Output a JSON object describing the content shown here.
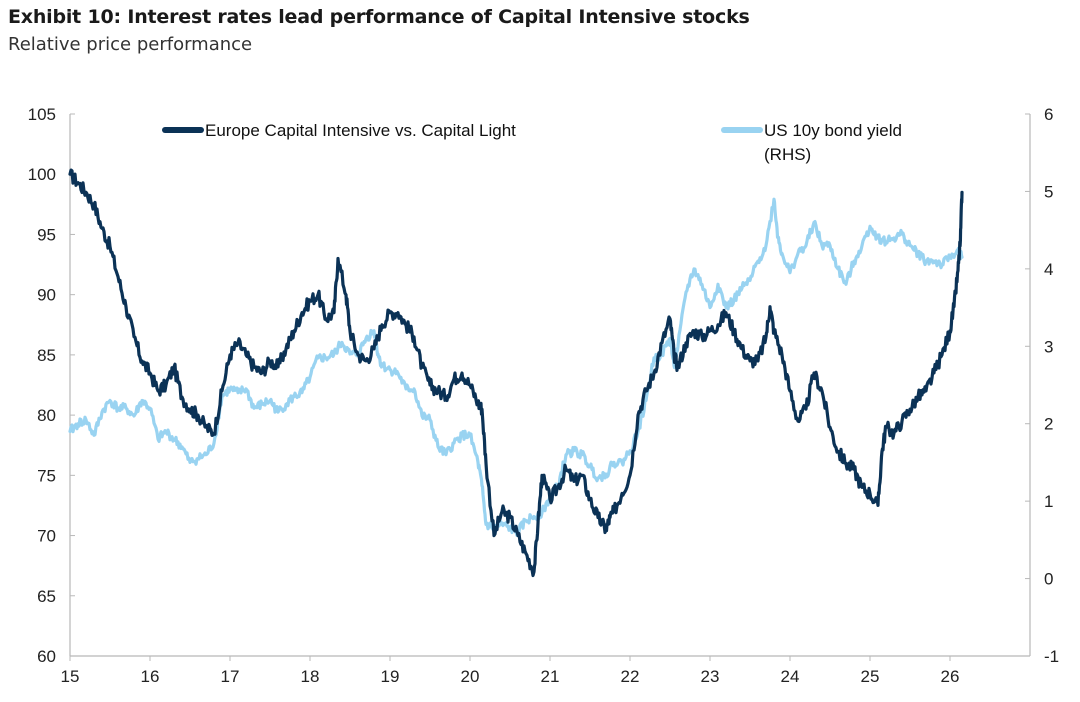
{
  "title": "Exhibit 10: Interest rates lead performance of Capital Intensive stocks",
  "subtitle": "Relative price performance",
  "chart_data": {
    "type": "line",
    "x_ticks": [
      "15",
      "16",
      "17",
      "18",
      "19",
      "20",
      "21",
      "22",
      "23",
      "24",
      "25",
      "26"
    ],
    "x_range": [
      2015,
      2027
    ],
    "left_axis": {
      "ticks": [
        60,
        65,
        70,
        75,
        80,
        85,
        90,
        95,
        100,
        105
      ],
      "range": [
        60,
        105
      ]
    },
    "right_axis": {
      "ticks": [
        -1,
        0,
        1,
        2,
        3,
        4,
        5,
        6
      ],
      "range": [
        -1,
        6
      ]
    },
    "legend_placement": "top",
    "series": [
      {
        "name": "Europe Capital Intensive vs. Capital Light",
        "axis": "left",
        "color": "#0b3256",
        "points": [
          [
            2015.0,
            100
          ],
          [
            2015.1,
            99.3
          ],
          [
            2015.2,
            98.5
          ],
          [
            2015.3,
            97.5
          ],
          [
            2015.4,
            95.5
          ],
          [
            2015.5,
            94
          ],
          [
            2015.6,
            91.5
          ],
          [
            2015.7,
            89
          ],
          [
            2015.8,
            86.5
          ],
          [
            2015.9,
            84.5
          ],
          [
            2016.0,
            83.5
          ],
          [
            2016.1,
            82
          ],
          [
            2016.2,
            82.5
          ],
          [
            2016.3,
            84
          ],
          [
            2016.4,
            81.5
          ],
          [
            2016.5,
            80.5
          ],
          [
            2016.6,
            80
          ],
          [
            2016.7,
            79
          ],
          [
            2016.8,
            78.5
          ],
          [
            2016.9,
            82
          ],
          [
            2017.0,
            85
          ],
          [
            2017.1,
            86
          ],
          [
            2017.2,
            85
          ],
          [
            2017.3,
            84
          ],
          [
            2017.4,
            83.5
          ],
          [
            2017.5,
            84.5
          ],
          [
            2017.6,
            84
          ],
          [
            2017.7,
            85.5
          ],
          [
            2017.8,
            87
          ],
          [
            2017.9,
            88.5
          ],
          [
            2018.0,
            89.5
          ],
          [
            2018.1,
            90
          ],
          [
            2018.2,
            88
          ],
          [
            2018.3,
            88.5
          ],
          [
            2018.35,
            93
          ],
          [
            2018.45,
            90
          ],
          [
            2018.5,
            87
          ],
          [
            2018.6,
            85
          ],
          [
            2018.7,
            84.5
          ],
          [
            2018.8,
            85.5
          ],
          [
            2018.9,
            87.5
          ],
          [
            2019.0,
            88.5
          ],
          [
            2019.1,
            88.5
          ],
          [
            2019.2,
            87.5
          ],
          [
            2019.3,
            86.5
          ],
          [
            2019.4,
            84
          ],
          [
            2019.5,
            82.5
          ],
          [
            2019.6,
            82
          ],
          [
            2019.7,
            81.5
          ],
          [
            2019.8,
            83
          ],
          [
            2019.9,
            83.5
          ],
          [
            2020.0,
            82.5
          ],
          [
            2020.1,
            81
          ],
          [
            2020.15,
            80.5
          ],
          [
            2020.2,
            76
          ],
          [
            2020.3,
            70
          ],
          [
            2020.4,
            72
          ],
          [
            2020.5,
            71.5
          ],
          [
            2020.6,
            70
          ],
          [
            2020.7,
            68.5
          ],
          [
            2020.8,
            67
          ],
          [
            2020.85,
            71
          ],
          [
            2020.9,
            75
          ],
          [
            2021.0,
            73
          ],
          [
            2021.1,
            74
          ],
          [
            2021.2,
            75.5
          ],
          [
            2021.3,
            74.5
          ],
          [
            2021.4,
            75
          ],
          [
            2021.5,
            73
          ],
          [
            2021.6,
            71.5
          ],
          [
            2021.7,
            70.5
          ],
          [
            2021.75,
            71.5
          ],
          [
            2021.8,
            72
          ],
          [
            2021.9,
            73.5
          ],
          [
            2022.0,
            75
          ],
          [
            2022.1,
            80
          ],
          [
            2022.2,
            82
          ],
          [
            2022.3,
            83.5
          ],
          [
            2022.4,
            86
          ],
          [
            2022.5,
            88
          ],
          [
            2022.55,
            85
          ],
          [
            2022.6,
            84
          ],
          [
            2022.7,
            86
          ],
          [
            2022.8,
            87
          ],
          [
            2022.9,
            86.5
          ],
          [
            2023.0,
            87
          ],
          [
            2023.1,
            87.5
          ],
          [
            2023.2,
            88.5
          ],
          [
            2023.3,
            87
          ],
          [
            2023.4,
            85.5
          ],
          [
            2023.5,
            84.5
          ],
          [
            2023.6,
            84.5
          ],
          [
            2023.7,
            86.5
          ],
          [
            2023.75,
            89
          ],
          [
            2023.8,
            87
          ],
          [
            2023.9,
            85
          ],
          [
            2024.0,
            82
          ],
          [
            2024.1,
            79.5
          ],
          [
            2024.2,
            80.5
          ],
          [
            2024.3,
            83.5
          ],
          [
            2024.4,
            82
          ],
          [
            2024.5,
            79
          ],
          [
            2024.6,
            77
          ],
          [
            2024.7,
            76
          ],
          [
            2024.8,
            75.5
          ],
          [
            2024.9,
            74
          ],
          [
            2025.0,
            73.5
          ],
          [
            2025.1,
            72.5
          ],
          [
            2025.15,
            77
          ],
          [
            2025.2,
            79
          ],
          [
            2025.3,
            78.5
          ],
          [
            2025.4,
            79.5
          ],
          [
            2025.5,
            80.5
          ],
          [
            2025.6,
            81.5
          ],
          [
            2025.7,
            82
          ],
          [
            2025.8,
            83.5
          ],
          [
            2025.9,
            85
          ],
          [
            2026.0,
            87
          ],
          [
            2026.05,
            89
          ],
          [
            2026.1,
            92
          ],
          [
            2026.13,
            94.5
          ],
          [
            2026.15,
            98.5
          ]
        ]
      },
      {
        "name": "US 10y bond yield (RHS)",
        "axis": "right",
        "color": "#99d3f1",
        "points": [
          [
            2015.0,
            1.9
          ],
          [
            2015.1,
            2.0
          ],
          [
            2015.2,
            2.05
          ],
          [
            2015.3,
            1.85
          ],
          [
            2015.4,
            2.15
          ],
          [
            2015.5,
            2.3
          ],
          [
            2015.6,
            2.2
          ],
          [
            2015.7,
            2.2
          ],
          [
            2015.8,
            2.1
          ],
          [
            2015.9,
            2.3
          ],
          [
            2016.0,
            2.2
          ],
          [
            2016.1,
            1.8
          ],
          [
            2016.2,
            1.9
          ],
          [
            2016.3,
            1.8
          ],
          [
            2016.4,
            1.7
          ],
          [
            2016.5,
            1.5
          ],
          [
            2016.6,
            1.55
          ],
          [
            2016.7,
            1.6
          ],
          [
            2016.8,
            1.75
          ],
          [
            2016.9,
            2.35
          ],
          [
            2017.0,
            2.45
          ],
          [
            2017.1,
            2.4
          ],
          [
            2017.2,
            2.45
          ],
          [
            2017.3,
            2.2
          ],
          [
            2017.4,
            2.25
          ],
          [
            2017.5,
            2.3
          ],
          [
            2017.6,
            2.15
          ],
          [
            2017.7,
            2.25
          ],
          [
            2017.8,
            2.35
          ],
          [
            2017.9,
            2.4
          ],
          [
            2018.0,
            2.6
          ],
          [
            2018.1,
            2.85
          ],
          [
            2018.2,
            2.85
          ],
          [
            2018.3,
            2.9
          ],
          [
            2018.4,
            3.05
          ],
          [
            2018.5,
            2.9
          ],
          [
            2018.6,
            2.9
          ],
          [
            2018.7,
            3.1
          ],
          [
            2018.8,
            3.2
          ],
          [
            2018.85,
            2.9
          ],
          [
            2018.9,
            2.75
          ],
          [
            2019.0,
            2.7
          ],
          [
            2019.1,
            2.65
          ],
          [
            2019.2,
            2.45
          ],
          [
            2019.3,
            2.45
          ],
          [
            2019.4,
            2.1
          ],
          [
            2019.5,
            2.05
          ],
          [
            2019.6,
            1.7
          ],
          [
            2019.7,
            1.6
          ],
          [
            2019.8,
            1.75
          ],
          [
            2019.9,
            1.85
          ],
          [
            2020.0,
            1.85
          ],
          [
            2020.1,
            1.5
          ],
          [
            2020.15,
            1.2
          ],
          [
            2020.2,
            0.7
          ],
          [
            2020.3,
            0.65
          ],
          [
            2020.4,
            0.7
          ],
          [
            2020.5,
            0.65
          ],
          [
            2020.6,
            0.6
          ],
          [
            2020.7,
            0.75
          ],
          [
            2020.8,
            0.8
          ],
          [
            2020.9,
            0.85
          ],
          [
            2021.0,
            1.05
          ],
          [
            2021.1,
            1.2
          ],
          [
            2021.2,
            1.6
          ],
          [
            2021.3,
            1.65
          ],
          [
            2021.4,
            1.6
          ],
          [
            2021.5,
            1.45
          ],
          [
            2021.6,
            1.3
          ],
          [
            2021.7,
            1.35
          ],
          [
            2021.8,
            1.5
          ],
          [
            2021.9,
            1.5
          ],
          [
            2022.0,
            1.65
          ],
          [
            2022.1,
            1.9
          ],
          [
            2022.2,
            2.3
          ],
          [
            2022.3,
            2.85
          ],
          [
            2022.4,
            2.9
          ],
          [
            2022.5,
            3.1
          ],
          [
            2022.55,
            2.75
          ],
          [
            2022.6,
            3.0
          ],
          [
            2022.7,
            3.7
          ],
          [
            2022.8,
            4.0
          ],
          [
            2022.9,
            3.8
          ],
          [
            2023.0,
            3.5
          ],
          [
            2023.1,
            3.8
          ],
          [
            2023.2,
            3.5
          ],
          [
            2023.3,
            3.6
          ],
          [
            2023.4,
            3.75
          ],
          [
            2023.5,
            3.85
          ],
          [
            2023.6,
            4.1
          ],
          [
            2023.7,
            4.3
          ],
          [
            2023.8,
            4.9
          ],
          [
            2023.85,
            4.4
          ],
          [
            2023.9,
            4.2
          ],
          [
            2024.0,
            3.95
          ],
          [
            2024.1,
            4.2
          ],
          [
            2024.2,
            4.3
          ],
          [
            2024.3,
            4.6
          ],
          [
            2024.4,
            4.3
          ],
          [
            2024.5,
            4.3
          ],
          [
            2024.6,
            4.0
          ],
          [
            2024.7,
            3.8
          ],
          [
            2024.8,
            4.1
          ],
          [
            2024.9,
            4.3
          ],
          [
            2025.0,
            4.55
          ],
          [
            2025.1,
            4.4
          ],
          [
            2025.2,
            4.35
          ],
          [
            2025.3,
            4.4
          ],
          [
            2025.4,
            4.45
          ],
          [
            2025.5,
            4.3
          ],
          [
            2025.6,
            4.2
          ],
          [
            2025.7,
            4.1
          ],
          [
            2025.8,
            4.1
          ],
          [
            2025.9,
            4.05
          ],
          [
            2026.0,
            4.15
          ],
          [
            2026.1,
            4.25
          ],
          [
            2026.15,
            4.15
          ]
        ]
      }
    ]
  }
}
